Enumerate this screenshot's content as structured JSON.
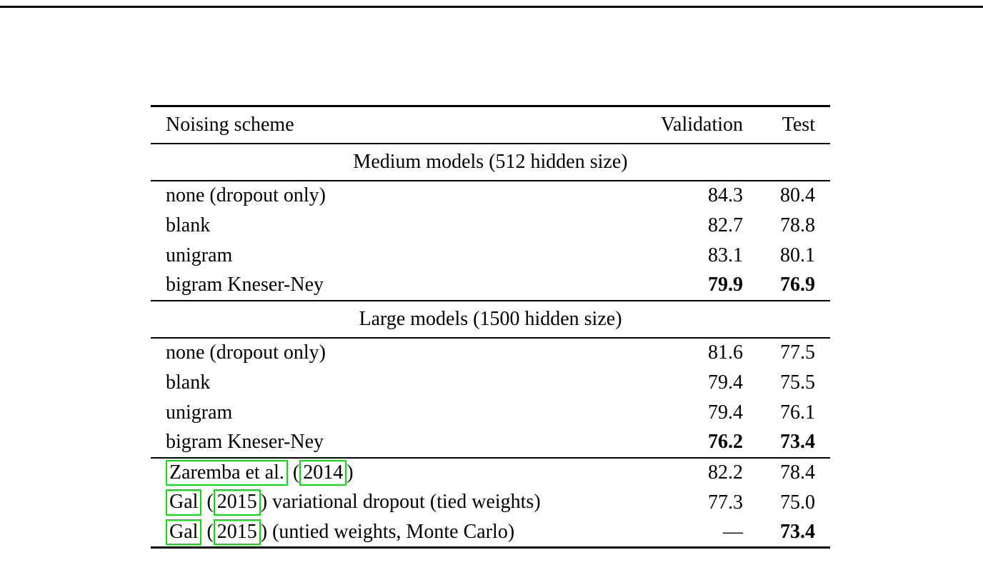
{
  "colors": {
    "background": "#ffffff",
    "text": "#000000",
    "rule": "#000000",
    "link_box": "#00e000"
  },
  "table": {
    "columns": [
      "Noising scheme",
      "Validation",
      "Test"
    ],
    "sections": [
      {
        "title": "Medium models (512 hidden size)",
        "rows": [
          {
            "scheme": "none (dropout only)",
            "validation": "84.3",
            "test": "80.4"
          },
          {
            "scheme": "blank",
            "validation": "82.7",
            "test": "78.8"
          },
          {
            "scheme": "unigram",
            "validation": "83.1",
            "test": "80.1"
          },
          {
            "scheme": "bigram Kneser-Ney",
            "validation": "79.9",
            "test": "76.9"
          }
        ]
      },
      {
        "title": "Large models (1500 hidden size)",
        "rows": [
          {
            "scheme": "none (dropout only)",
            "validation": "81.6",
            "test": "77.5"
          },
          {
            "scheme": "blank",
            "validation": "79.4",
            "test": "75.5"
          },
          {
            "scheme": "unigram",
            "validation": "79.4",
            "test": "76.1"
          },
          {
            "scheme": "bigram Kneser-Ney",
            "validation": "76.2",
            "test": "73.4"
          }
        ]
      }
    ],
    "baselines": [
      {
        "author": "Zaremba et al.",
        "pre_year": " (",
        "year": "2014",
        "suffix": ")",
        "validation": "82.2",
        "test": "78.4"
      },
      {
        "author": "Gal",
        "pre_year": " (",
        "year": "2015",
        "suffix": ") variational dropout (tied weights)",
        "validation": "77.3",
        "test": "75.0"
      },
      {
        "author": "Gal",
        "pre_year": " (",
        "year": "2015",
        "suffix": ") (untied weights, Monte Carlo)",
        "validation": "—",
        "test": "73.4"
      }
    ]
  }
}
